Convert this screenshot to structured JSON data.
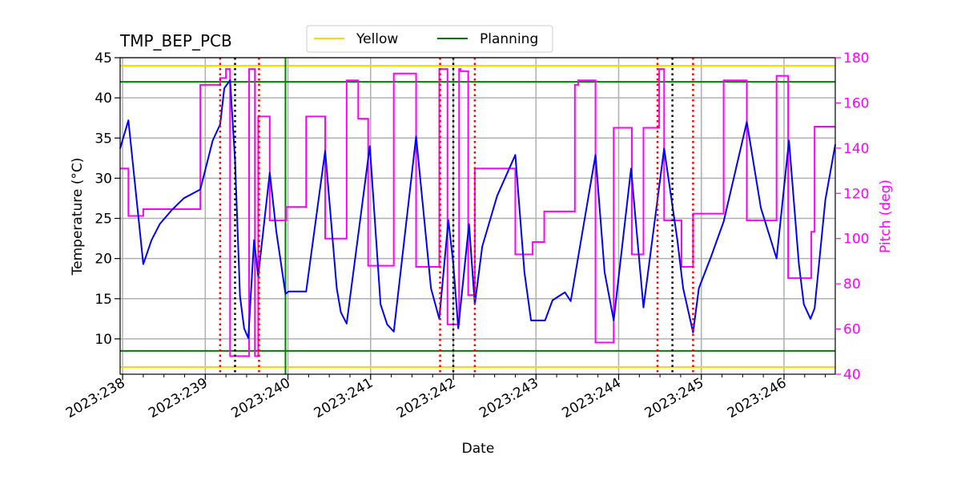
{
  "chart_data": {
    "type": "line",
    "title": "TMP_BEP_PCB",
    "xlabel": "Date",
    "ylabel": "Temperature (°C)",
    "y2label": "Pitch (deg)",
    "xlim": [
      237.97,
      246.62
    ],
    "ylim": [
      5.6,
      45
    ],
    "y2lim": [
      40,
      180
    ],
    "grid": true,
    "legend_placement": "top-center",
    "x_ticks": [
      238,
      239,
      240,
      241,
      242,
      243,
      244,
      245,
      246
    ],
    "x_tick_labels": [
      "2023:238",
      "2023:239",
      "2023:240",
      "2023:241",
      "2023:242",
      "2023:243",
      "2023:244",
      "2023:245",
      "2023:246"
    ],
    "y_ticks": [
      10,
      15,
      20,
      25,
      30,
      35,
      40,
      45
    ],
    "y2_ticks": [
      40,
      60,
      80,
      100,
      120,
      140,
      160,
      180
    ],
    "colors": {
      "temperature": "#0000ff",
      "pitch": "#ff00ff",
      "yellow": "#ffd700",
      "planning": "#008000",
      "red_marker": "#ff0000",
      "black_marker": "#000000"
    },
    "legend": [
      {
        "label": "Yellow",
        "color": "#ffd700"
      },
      {
        "label": "Planning",
        "color": "#008000"
      }
    ],
    "limits": {
      "yellow": [
        44,
        6.5
      ],
      "planning": [
        42,
        8.5
      ]
    },
    "vlines": {
      "red_dotted": [
        239.18,
        239.65,
        241.84,
        242.26,
        244.47,
        244.9
      ],
      "black_dotted": [
        239.36,
        242.0,
        244.65
      ],
      "green_solid": [
        239.97
      ]
    },
    "series": [
      {
        "name": "Temperature",
        "axis": "left",
        "points": [
          [
            237.97,
            33.7
          ],
          [
            238.07,
            37.2
          ],
          [
            238.25,
            19.3
          ],
          [
            238.35,
            22.3
          ],
          [
            238.45,
            24.3
          ],
          [
            238.6,
            26.1
          ],
          [
            238.74,
            27.5
          ],
          [
            238.94,
            28.6
          ],
          [
            239.09,
            34.7
          ],
          [
            239.18,
            36.7
          ],
          [
            239.23,
            41.2
          ],
          [
            239.3,
            42.2
          ],
          [
            239.36,
            32.2
          ],
          [
            239.42,
            15.3
          ],
          [
            239.47,
            11.3
          ],
          [
            239.52,
            10.1
          ],
          [
            239.59,
            22.3
          ],
          [
            239.64,
            17.8
          ],
          [
            239.78,
            30.7
          ],
          [
            239.86,
            23.3
          ],
          [
            239.97,
            15.6
          ],
          [
            240.01,
            15.9
          ],
          [
            240.22,
            15.9
          ],
          [
            240.45,
            33.4
          ],
          [
            240.59,
            16.3
          ],
          [
            240.64,
            13.3
          ],
          [
            240.71,
            11.9
          ],
          [
            240.99,
            34.0
          ],
          [
            241.12,
            14.3
          ],
          [
            241.2,
            11.8
          ],
          [
            241.28,
            10.9
          ],
          [
            241.55,
            35.2
          ],
          [
            241.73,
            16.3
          ],
          [
            241.83,
            12.5
          ],
          [
            241.94,
            24.8
          ],
          [
            242.0,
            19.3
          ],
          [
            242.06,
            11.3
          ],
          [
            242.19,
            24.3
          ],
          [
            242.26,
            14.3
          ],
          [
            242.35,
            21.5
          ],
          [
            242.53,
            27.8
          ],
          [
            242.75,
            32.9
          ],
          [
            242.86,
            18.3
          ],
          [
            242.94,
            12.3
          ],
          [
            243.11,
            12.3
          ],
          [
            243.2,
            14.8
          ],
          [
            243.35,
            15.8
          ],
          [
            243.42,
            14.7
          ],
          [
            243.72,
            32.9
          ],
          [
            243.83,
            18.3
          ],
          [
            243.94,
            12.3
          ],
          [
            244.15,
            31.2
          ],
          [
            244.3,
            13.9
          ],
          [
            244.55,
            33.7
          ],
          [
            244.71,
            22.3
          ],
          [
            244.78,
            16.3
          ],
          [
            244.9,
            10.8
          ],
          [
            244.97,
            16.3
          ],
          [
            245.12,
            20.3
          ],
          [
            245.27,
            24.6
          ],
          [
            245.55,
            37.0
          ],
          [
            245.72,
            26.3
          ],
          [
            245.91,
            20.0
          ],
          [
            246.06,
            34.7
          ],
          [
            246.18,
            19.3
          ],
          [
            246.24,
            14.3
          ],
          [
            246.32,
            12.5
          ],
          [
            246.37,
            13.8
          ],
          [
            246.5,
            27.3
          ],
          [
            246.62,
            34.2
          ]
        ]
      },
      {
        "name": "Pitch",
        "axis": "right",
        "steps": [
          [
            237.97,
            131
          ],
          [
            238.07,
            110
          ],
          [
            238.25,
            113
          ],
          [
            238.94,
            168
          ],
          [
            239.18,
            171
          ],
          [
            239.25,
            175
          ],
          [
            239.3,
            48
          ],
          [
            239.53,
            175
          ],
          [
            239.6,
            48
          ],
          [
            239.64,
            154
          ],
          [
            239.78,
            108
          ],
          [
            239.98,
            114
          ],
          [
            240.22,
            154
          ],
          [
            240.45,
            100
          ],
          [
            240.71,
            170
          ],
          [
            240.85,
            153
          ],
          [
            240.97,
            88
          ],
          [
            241.28,
            173
          ],
          [
            241.55,
            87.5
          ],
          [
            241.83,
            175
          ],
          [
            241.93,
            62
          ],
          [
            242.07,
            175
          ],
          [
            242.09,
            174
          ],
          [
            242.18,
            75
          ],
          [
            242.26,
            131
          ],
          [
            242.75,
            93
          ],
          [
            242.96,
            98.5
          ],
          [
            243.1,
            112
          ],
          [
            243.47,
            168
          ],
          [
            243.51,
            170
          ],
          [
            243.72,
            54
          ],
          [
            243.94,
            149
          ],
          [
            244.16,
            93
          ],
          [
            244.3,
            149
          ],
          [
            244.49,
            175
          ],
          [
            244.55,
            108
          ],
          [
            244.76,
            87.5
          ],
          [
            244.9,
            111
          ],
          [
            245.27,
            170
          ],
          [
            245.55,
            108
          ],
          [
            245.91,
            172
          ],
          [
            246.05,
            82.5
          ],
          [
            246.33,
            103
          ],
          [
            246.37,
            149.5
          ],
          [
            246.62,
            149.5
          ]
        ]
      }
    ]
  }
}
